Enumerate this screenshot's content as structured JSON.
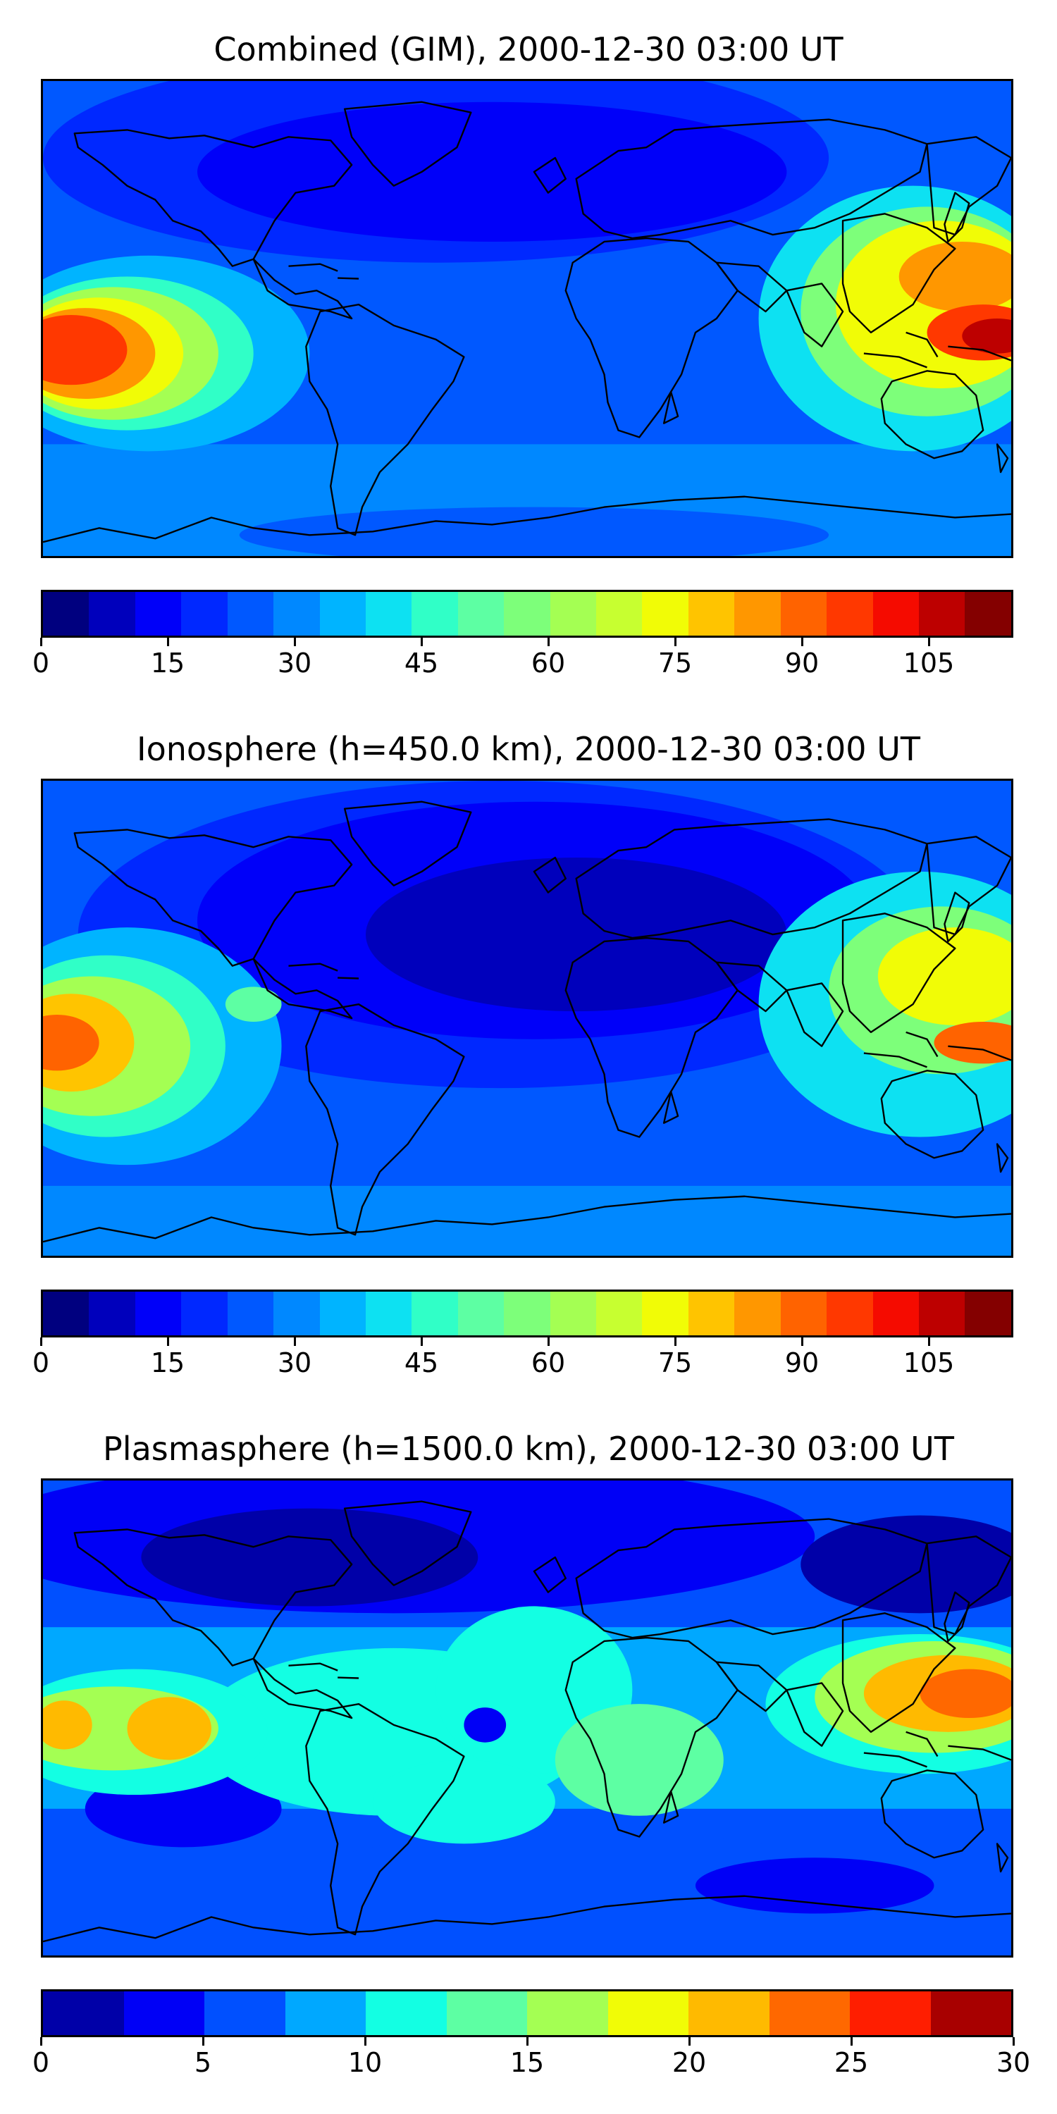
{
  "panels": [
    {
      "title": "Combined (GIM), 2000-12-30 03:00 UT",
      "colorbar": {
        "colors": [
          "#00007f",
          "#0000bc",
          "#0000f9",
          "#0028ff",
          "#0058ff",
          "#0088ff",
          "#00b4ff",
          "#0de1f2",
          "#30ffc7",
          "#5dffa3",
          "#7dff7a",
          "#a4ff53",
          "#c7ff30",
          "#f1fc06",
          "#ffc400",
          "#ff9700",
          "#ff6300",
          "#ff3800",
          "#f50b00",
          "#bd0000",
          "#840000"
        ],
        "ticks": [
          "0",
          "15",
          "30",
          "45",
          "60",
          "75",
          "90",
          "105"
        ],
        "tick_values": [
          0,
          15,
          30,
          45,
          60,
          75,
          90,
          105
        ],
        "vmin": 0,
        "vmax": 115
      }
    },
    {
      "title": "Ionosphere  (h=450.0 km), 2000-12-30 03:00 UT",
      "colorbar": {
        "colors": [
          "#00007f",
          "#0000bc",
          "#0000f9",
          "#0028ff",
          "#0058ff",
          "#0088ff",
          "#00b4ff",
          "#0de1f2",
          "#30ffc7",
          "#5dffa3",
          "#7dff7a",
          "#a4ff53",
          "#c7ff30",
          "#f1fc06",
          "#ffc400",
          "#ff9700",
          "#ff6300",
          "#ff3800",
          "#f50b00",
          "#bd0000",
          "#840000"
        ],
        "ticks": [
          "0",
          "15",
          "30",
          "45",
          "60",
          "75",
          "90",
          "105"
        ],
        "tick_values": [
          0,
          15,
          30,
          45,
          60,
          75,
          90,
          105
        ],
        "vmin": 0,
        "vmax": 115
      }
    },
    {
      "title": "Plasmasphere (h=1500.0 km), 2000-12-30 03:00 UT",
      "colorbar": {
        "colors": [
          "#0000a8",
          "#0000f6",
          "#0050ff",
          "#00a8ff",
          "#13ffe3",
          "#5dffa3",
          "#a4ff53",
          "#f1fc06",
          "#ffba00",
          "#ff6800",
          "#ff1e00",
          "#a80000"
        ],
        "ticks": [
          "0",
          "5",
          "10",
          "15",
          "20",
          "25",
          "30"
        ],
        "tick_values": [
          0,
          5,
          10,
          15,
          20,
          25,
          30
        ],
        "vmin": 0,
        "vmax": 30
      }
    }
  ]
}
